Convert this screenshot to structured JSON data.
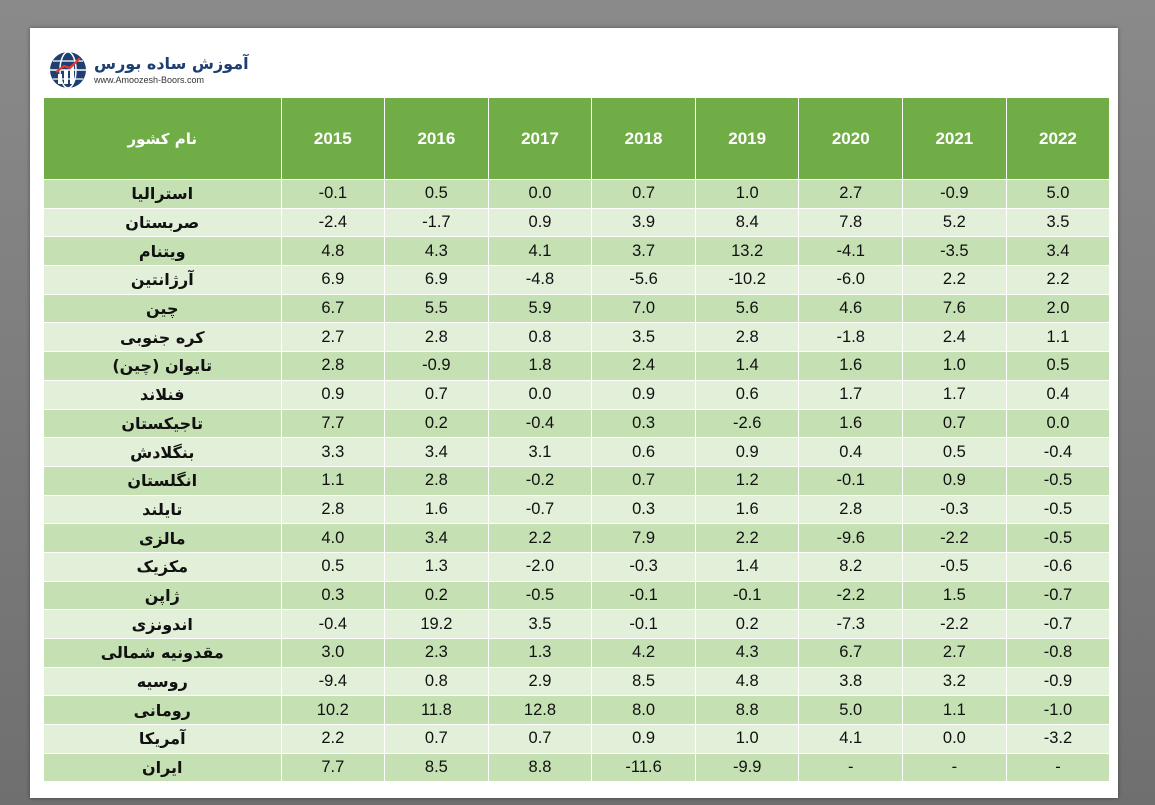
{
  "brand": {
    "name": "آموزش ساده بورس",
    "site": "www.Amoozesh-Boors.com"
  },
  "table": {
    "header_country": "نام کشور",
    "years": [
      "2015",
      "2016",
      "2017",
      "2018",
      "2019",
      "2020",
      "2021",
      "2022"
    ],
    "rows": [
      {
        "country": "استرالیا",
        "values": [
          "-0.1",
          "0.5",
          "0.0",
          "0.7",
          "1.0",
          "2.7",
          "-0.9",
          "5.0"
        ]
      },
      {
        "country": "صربستان",
        "values": [
          "-2.4",
          "-1.7",
          "0.9",
          "3.9",
          "8.4",
          "7.8",
          "5.2",
          "3.5"
        ]
      },
      {
        "country": "ویتنام",
        "values": [
          "4.8",
          "4.3",
          "4.1",
          "3.7",
          "13.2",
          "-4.1",
          "-3.5",
          "3.4"
        ]
      },
      {
        "country": "آرژانتین",
        "values": [
          "6.9",
          "6.9",
          "-4.8",
          "-5.6",
          "-10.2",
          "-6.0",
          "2.2",
          "2.2"
        ]
      },
      {
        "country": "چین",
        "values": [
          "6.7",
          "5.5",
          "5.9",
          "7.0",
          "5.6",
          "4.6",
          "7.6",
          "2.0"
        ]
      },
      {
        "country": "کره جنوبی",
        "values": [
          "2.7",
          "2.8",
          "0.8",
          "3.5",
          "2.8",
          "-1.8",
          "2.4",
          "1.1"
        ]
      },
      {
        "country": "تایوان (چین)",
        "values": [
          "2.8",
          "-0.9",
          "1.8",
          "2.4",
          "1.4",
          "1.6",
          "1.0",
          "0.5"
        ]
      },
      {
        "country": "فنلاند",
        "values": [
          "0.9",
          "0.7",
          "0.0",
          "0.9",
          "0.6",
          "1.7",
          "1.7",
          "0.4"
        ]
      },
      {
        "country": "تاجیکستان",
        "values": [
          "7.7",
          "0.2",
          "-0.4",
          "0.3",
          "-2.6",
          "1.6",
          "0.7",
          "0.0"
        ]
      },
      {
        "country": "بنگلادش",
        "values": [
          "3.3",
          "3.4",
          "3.1",
          "0.6",
          "0.9",
          "0.4",
          "0.5",
          "-0.4"
        ]
      },
      {
        "country": "انگلستان",
        "values": [
          "1.1",
          "2.8",
          "-0.2",
          "0.7",
          "1.2",
          "-0.1",
          "0.9",
          "-0.5"
        ]
      },
      {
        "country": "تایلند",
        "values": [
          "2.8",
          "1.6",
          "-0.7",
          "0.3",
          "1.6",
          "2.8",
          "-0.3",
          "-0.5"
        ]
      },
      {
        "country": "مالزی",
        "values": [
          "4.0",
          "3.4",
          "2.2",
          "7.9",
          "2.2",
          "-9.6",
          "-2.2",
          "-0.5"
        ]
      },
      {
        "country": "مکزیک",
        "values": [
          "0.5",
          "1.3",
          "-2.0",
          "-0.3",
          "1.4",
          "8.2",
          "-0.5",
          "-0.6"
        ]
      },
      {
        "country": "ژاپن",
        "values": [
          "0.3",
          "0.2",
          "-0.5",
          "-0.1",
          "-0.1",
          "-2.2",
          "1.5",
          "-0.7"
        ]
      },
      {
        "country": "اندونزی",
        "values": [
          "-0.4",
          "19.2",
          "3.5",
          "-0.1",
          "0.2",
          "-7.3",
          "-2.2",
          "-0.7"
        ]
      },
      {
        "country": "مقدونیه شمالی",
        "values": [
          "3.0",
          "2.3",
          "1.3",
          "4.2",
          "4.3",
          "6.7",
          "2.7",
          "-0.8"
        ]
      },
      {
        "country": "روسیه",
        "values": [
          "-9.4",
          "0.8",
          "2.9",
          "8.5",
          "4.8",
          "3.8",
          "3.2",
          "-0.9"
        ]
      },
      {
        "country": "رومانی",
        "values": [
          "10.2",
          "11.8",
          "12.8",
          "8.0",
          "8.8",
          "5.0",
          "1.1",
          "-1.0"
        ]
      },
      {
        "country": "آمریکا",
        "values": [
          "2.2",
          "0.7",
          "0.7",
          "0.9",
          "1.0",
          "4.1",
          "0.0",
          "-3.2"
        ]
      },
      {
        "country": "ایران",
        "values": [
          "7.7",
          "8.5",
          "8.8",
          "-11.6",
          "-9.9",
          "-",
          "-",
          "-"
        ]
      }
    ]
  }
}
